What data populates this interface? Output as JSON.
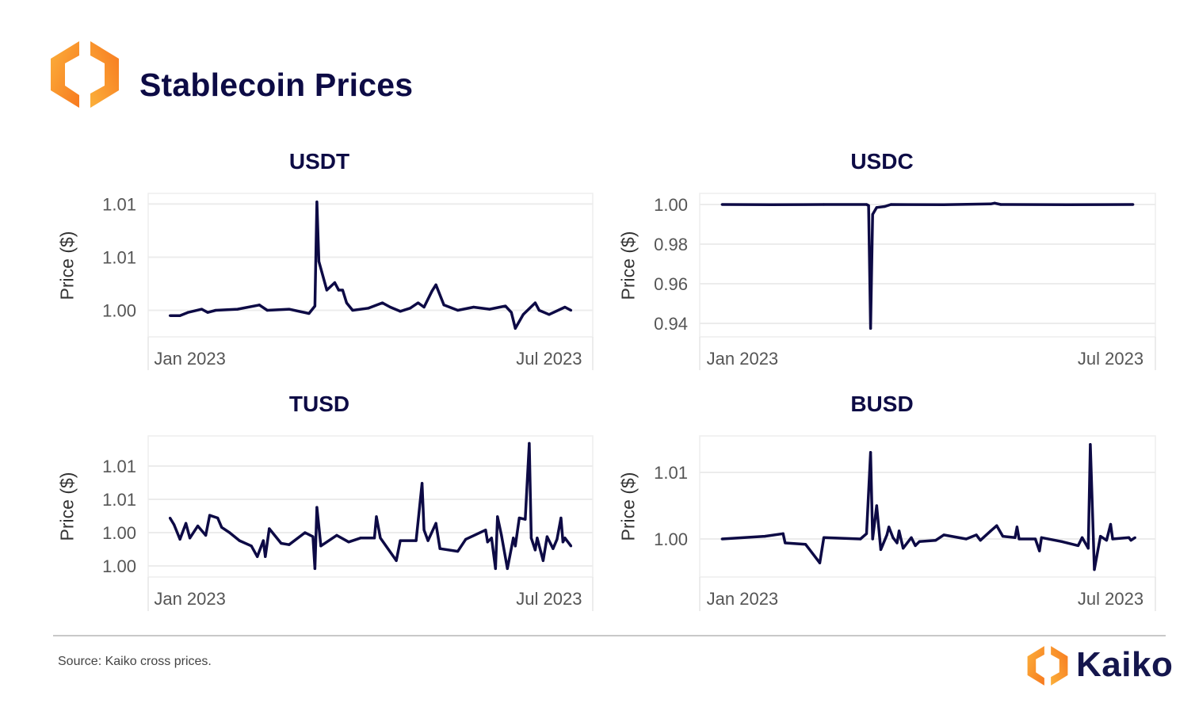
{
  "header": {
    "title": "Stablecoin Prices",
    "logo": "kaiko-hexagon-logo"
  },
  "footer": {
    "source": "Source: Kaiko cross prices.",
    "brand": "Kaiko"
  },
  "colors": {
    "line": "#0d0a45",
    "title": "#0d0b45",
    "grid": "#ececec",
    "logo_orange": "#f7941d",
    "logo_yellow": "#fbb03b"
  },
  "chart_data": [
    {
      "type": "line",
      "title": "USDT",
      "ylabel": "Price ($)",
      "xlabel": "",
      "ylim": [
        0.9975,
        1.011
      ],
      "xlim": [
        "2022-12-11",
        "2023-07-23"
      ],
      "grid": true,
      "yticks": [
        1.0,
        1.005,
        1.01
      ],
      "ytick_labels": [
        "1.00",
        "1.01",
        "1.01"
      ],
      "xticks": [
        "2023-01-01",
        "2023-07-01"
      ],
      "xtick_labels": [
        "Jan 2023",
        "Jul 2023"
      ],
      "points": [
        [
          "2022-12-22",
          0.9995
        ],
        [
          "2022-12-27",
          0.9995
        ],
        [
          "2022-12-31",
          0.9998
        ],
        [
          "2023-01-07",
          1.0001
        ],
        [
          "2023-01-10",
          0.9998
        ],
        [
          "2023-01-14",
          1.0
        ],
        [
          "2023-01-25",
          1.0001
        ],
        [
          "2023-02-05",
          1.0005
        ],
        [
          "2023-02-09",
          1.0
        ],
        [
          "2023-02-20",
          1.0001
        ],
        [
          "2023-03-02",
          0.9997
        ],
        [
          "2023-03-05",
          1.0004
        ],
        [
          "2023-03-06",
          1.0102
        ],
        [
          "2023-03-07",
          1.0046
        ],
        [
          "2023-03-11",
          1.0019
        ],
        [
          "2023-03-15",
          1.0026
        ],
        [
          "2023-03-17",
          1.0019
        ],
        [
          "2023-03-19",
          1.0019
        ],
        [
          "2023-03-21",
          1.0007
        ],
        [
          "2023-03-24",
          1.0
        ],
        [
          "2023-04-01",
          1.0002
        ],
        [
          "2023-04-08",
          1.0007
        ],
        [
          "2023-04-12",
          1.0003
        ],
        [
          "2023-04-17",
          0.9999
        ],
        [
          "2023-04-22",
          1.0002
        ],
        [
          "2023-04-26",
          1.0007
        ],
        [
          "2023-04-29",
          1.0003
        ],
        [
          "2023-05-03",
          1.0018
        ],
        [
          "2023-05-05",
          1.0024
        ],
        [
          "2023-05-09",
          1.0005
        ],
        [
          "2023-05-16",
          1.0
        ],
        [
          "2023-05-24",
          1.0003
        ],
        [
          "2023-06-01",
          1.0001
        ],
        [
          "2023-06-09",
          1.0004
        ],
        [
          "2023-06-12",
          0.9998
        ],
        [
          "2023-06-14",
          0.9983
        ],
        [
          "2023-06-18",
          0.9996
        ],
        [
          "2023-06-24",
          1.0007
        ],
        [
          "2023-06-26",
          1.0
        ],
        [
          "2023-07-01",
          0.9996
        ],
        [
          "2023-07-09",
          1.0003
        ],
        [
          "2023-07-12",
          1.0
        ]
      ]
    },
    {
      "type": "line",
      "title": "USDC",
      "ylabel": "Price ($)",
      "xlabel": "",
      "ylim": [
        0.9332,
        1.0056
      ],
      "xlim": [
        "2022-12-11",
        "2023-07-23"
      ],
      "grid": true,
      "yticks": [
        0.94,
        0.96,
        0.98,
        1.0
      ],
      "ytick_labels": [
        "0.94",
        "0.96",
        "0.98",
        "1.00"
      ],
      "xticks": [
        "2023-01-01",
        "2023-07-01"
      ],
      "xtick_labels": [
        "Jan 2023",
        "Jul 2023"
      ],
      "points": [
        [
          "2022-12-22",
          1.0
        ],
        [
          "2023-01-15",
          0.9999
        ],
        [
          "2023-02-10",
          1.0
        ],
        [
          "2023-03-03",
          1.0
        ],
        [
          "2023-03-04",
          0.9995
        ],
        [
          "2023-03-05",
          0.9375
        ],
        [
          "2023-03-06",
          0.995
        ],
        [
          "2023-03-08",
          0.9985
        ],
        [
          "2023-03-12",
          0.999
        ],
        [
          "2023-03-15",
          1.0
        ],
        [
          "2023-04-10",
          0.9999
        ],
        [
          "2023-05-03",
          1.0003
        ],
        [
          "2023-05-05",
          1.0007
        ],
        [
          "2023-05-08",
          1.0
        ],
        [
          "2023-06-10",
          0.9999
        ],
        [
          "2023-07-12",
          1.0
        ]
      ]
    },
    {
      "type": "line",
      "title": "TUSD",
      "ylabel": "Price ($)",
      "xlabel": "",
      "ylim": [
        0.99917,
        1.00976
      ],
      "xlim": [
        "2022-12-11",
        "2023-07-23"
      ],
      "grid": true,
      "yticks": [
        1.0,
        1.0025,
        1.005,
        1.0075
      ],
      "ytick_labels": [
        "1.00",
        "1.00",
        "1.01",
        "1.01"
      ],
      "xticks": [
        "2023-01-01",
        "2023-07-01"
      ],
      "xtick_labels": [
        "Jan 2023",
        "Jul 2023"
      ],
      "points": [
        [
          "2022-12-22",
          1.0036
        ],
        [
          "2022-12-24",
          1.0031
        ],
        [
          "2022-12-27",
          1.002
        ],
        [
          "2022-12-30",
          1.0032
        ],
        [
          "2023-01-01",
          1.0021
        ],
        [
          "2023-01-05",
          1.003
        ],
        [
          "2023-01-09",
          1.0023
        ],
        [
          "2023-01-11",
          1.0038
        ],
        [
          "2023-01-15",
          1.0036
        ],
        [
          "2023-01-17",
          1.0029
        ],
        [
          "2023-01-21",
          1.0025
        ],
        [
          "2023-01-26",
          1.0019
        ],
        [
          "2023-02-01",
          1.0015
        ],
        [
          "2023-02-04",
          1.0007
        ],
        [
          "2023-02-07",
          1.0019
        ],
        [
          "2023-02-08",
          1.0007
        ],
        [
          "2023-02-10",
          1.0028
        ],
        [
          "2023-02-16",
          1.0017
        ],
        [
          "2023-02-20",
          1.0016
        ],
        [
          "2023-02-28",
          1.0025
        ],
        [
          "2023-03-04",
          1.0022
        ],
        [
          "2023-03-05",
          0.9998
        ],
        [
          "2023-03-06",
          1.0044
        ],
        [
          "2023-03-08",
          1.0015
        ],
        [
          "2023-03-16",
          1.0023
        ],
        [
          "2023-03-22",
          1.0018
        ],
        [
          "2023-03-28",
          1.0021
        ],
        [
          "2023-04-04",
          1.0021
        ],
        [
          "2023-04-05",
          1.0037
        ],
        [
          "2023-04-07",
          1.0021
        ],
        [
          "2023-04-15",
          1.0004
        ],
        [
          "2023-04-17",
          1.0019
        ],
        [
          "2023-04-25",
          1.0019
        ],
        [
          "2023-04-28",
          1.0062
        ],
        [
          "2023-04-29",
          1.0027
        ],
        [
          "2023-05-01",
          1.0019
        ],
        [
          "2023-05-05",
          1.0032
        ],
        [
          "2023-05-07",
          1.0013
        ],
        [
          "2023-05-16",
          1.0011
        ],
        [
          "2023-05-20",
          1.002
        ],
        [
          "2023-05-30",
          1.0027
        ],
        [
          "2023-05-31",
          1.0018
        ],
        [
          "2023-06-02",
          1.0021
        ],
        [
          "2023-06-04",
          0.9998
        ],
        [
          "2023-06-05",
          1.0037
        ],
        [
          "2023-06-07",
          1.0023
        ],
        [
          "2023-06-10",
          0.9998
        ],
        [
          "2023-06-13",
          1.0021
        ],
        [
          "2023-06-14",
          1.0015
        ],
        [
          "2023-06-16",
          1.0036
        ],
        [
          "2023-06-19",
          1.0035
        ],
        [
          "2023-06-21",
          1.0092
        ],
        [
          "2023-06-22",
          1.0021
        ],
        [
          "2023-06-24",
          1.0012
        ],
        [
          "2023-06-25",
          1.0021
        ],
        [
          "2023-06-28",
          1.0004
        ],
        [
          "2023-06-30",
          1.0022
        ],
        [
          "2023-07-03",
          1.0013
        ],
        [
          "2023-07-05",
          1.002
        ],
        [
          "2023-07-07",
          1.0036
        ],
        [
          "2023-07-08",
          1.0018
        ],
        [
          "2023-07-09",
          1.0021
        ],
        [
          "2023-07-12",
          1.0015
        ]
      ]
    },
    {
      "type": "line",
      "title": "BUSD",
      "ylabel": "Price ($)",
      "xlabel": "",
      "ylim": [
        0.99714,
        1.00774
      ],
      "xlim": [
        "2022-12-11",
        "2023-07-23"
      ],
      "grid": true,
      "yticks": [
        1.0,
        1.005
      ],
      "ytick_labels": [
        "1.00",
        "1.01"
      ],
      "xticks": [
        "2023-01-01",
        "2023-07-01"
      ],
      "xtick_labels": [
        "Jan 2023",
        "Jul 2023"
      ],
      "points": [
        [
          "2022-12-22",
          1.0
        ],
        [
          "2023-01-12",
          1.0002
        ],
        [
          "2023-01-21",
          1.0004
        ],
        [
          "2023-01-22",
          0.9997
        ],
        [
          "2023-02-01",
          0.9996
        ],
        [
          "2023-02-08",
          0.9982
        ],
        [
          "2023-02-10",
          1.0001
        ],
        [
          "2023-02-28",
          1.0
        ],
        [
          "2023-03-03",
          1.0004
        ],
        [
          "2023-03-05",
          1.0065
        ],
        [
          "2023-03-06",
          1.0
        ],
        [
          "2023-03-08",
          1.0025
        ],
        [
          "2023-03-10",
          0.9992
        ],
        [
          "2023-03-13",
          1.0003
        ],
        [
          "2023-03-14",
          1.0009
        ],
        [
          "2023-03-16",
          1.0001
        ],
        [
          "2023-03-18",
          0.9997
        ],
        [
          "2023-03-19",
          1.0006
        ],
        [
          "2023-03-21",
          0.9993
        ],
        [
          "2023-03-25",
          1.0001
        ],
        [
          "2023-03-27",
          0.9995
        ],
        [
          "2023-03-29",
          0.9998
        ],
        [
          "2023-04-06",
          0.9999
        ],
        [
          "2023-04-10",
          1.0003
        ],
        [
          "2023-04-21",
          1.0
        ],
        [
          "2023-04-26",
          1.0003
        ],
        [
          "2023-04-28",
          0.9999
        ],
        [
          "2023-05-03",
          1.0006
        ],
        [
          "2023-05-06",
          1.001
        ],
        [
          "2023-05-09",
          1.0002
        ],
        [
          "2023-05-15",
          1.0001
        ],
        [
          "2023-05-16",
          1.0009
        ],
        [
          "2023-05-17",
          1.0
        ],
        [
          "2023-05-25",
          1.0
        ],
        [
          "2023-05-27",
          0.9991
        ],
        [
          "2023-05-28",
          1.0001
        ],
        [
          "2023-06-07",
          0.9998
        ],
        [
          "2023-06-15",
          0.9995
        ],
        [
          "2023-06-17",
          1.0001
        ],
        [
          "2023-06-20",
          0.9993
        ],
        [
          "2023-06-21",
          1.0071
        ],
        [
          "2023-06-23",
          0.9977
        ],
        [
          "2023-06-26",
          1.0002
        ],
        [
          "2023-06-29",
          0.9999
        ],
        [
          "2023-07-01",
          1.0011
        ],
        [
          "2023-07-02",
          1.0
        ],
        [
          "2023-07-10",
          1.0001
        ],
        [
          "2023-07-11",
          0.9999
        ],
        [
          "2023-07-13",
          1.0001
        ]
      ]
    }
  ]
}
